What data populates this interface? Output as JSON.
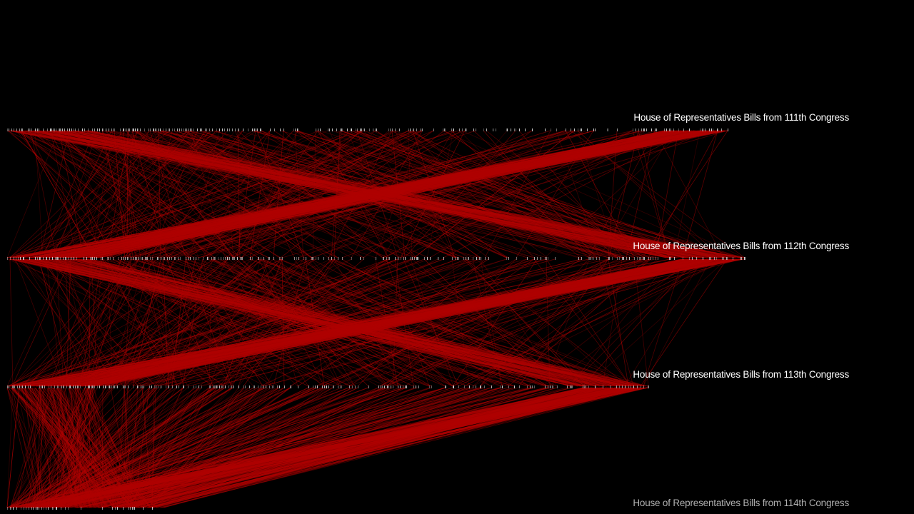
{
  "rows": [
    {
      "label": "House of Representatives Bills from 111th Congress",
      "text_color": "#ffffff",
      "span": 0.88
    },
    {
      "label": "House of Representatives Bills from 112th Congress",
      "text_color": "#ffffff",
      "span": 0.9
    },
    {
      "label": "House of Representatives Bills from 113th Congress",
      "text_color": "#ffffff",
      "span": 0.79
    },
    {
      "label": "House of Representatives Bills from 114th Congress",
      "text_color": "#b0b0b0",
      "span": 0.18
    }
  ],
  "colors": {
    "background": "#000000",
    "link": "#b00000",
    "tick": "#d8d8d8"
  }
}
